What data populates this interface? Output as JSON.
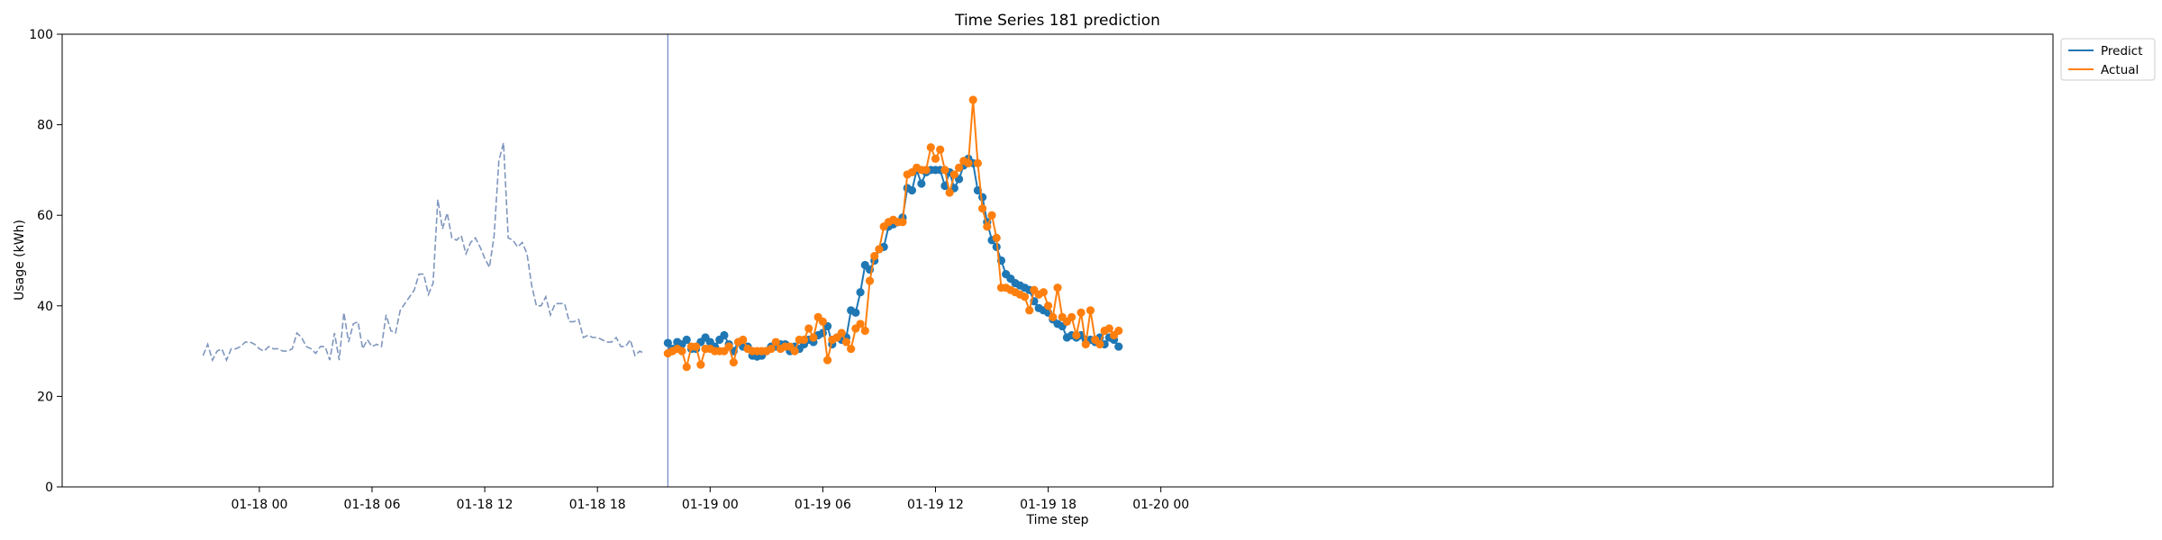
{
  "chart_data": {
    "type": "line",
    "title": "Time Series 181 prediction",
    "xlabel": "Time step",
    "ylabel": "Usage (kWh)",
    "ylim": [
      0,
      100
    ],
    "yticks": [
      0,
      20,
      40,
      60,
      80,
      100
    ],
    "xlim_hours": [
      -10.5,
      95.5
    ],
    "xticks": [
      {
        "label": "01-18 00",
        "hour": 0
      },
      {
        "label": "01-18 06",
        "hour": 6
      },
      {
        "label": "01-18 12",
        "hour": 12
      },
      {
        "label": "01-18 18",
        "hour": 18
      },
      {
        "label": "01-19 00",
        "hour": 24
      },
      {
        "label": "01-19 06",
        "hour": 30
      },
      {
        "label": "01-19 12",
        "hour": 36
      },
      {
        "label": "01-19 18",
        "hour": 42
      },
      {
        "label": "01-20 00",
        "hour": 48
      }
    ],
    "time_start": "01-17 21:00",
    "time_step_minutes": 15,
    "forecast_start": "01-18 21:45",
    "legend": {
      "position": "top-right",
      "entries": [
        "Predict",
        "Actual"
      ]
    },
    "colors": {
      "history": "#7f96bd",
      "predict": "#1f77b4",
      "actual": "#ff7f0e",
      "divider": "#6f88c4"
    },
    "history": [
      29,
      31.5,
      28,
      30,
      30.5,
      28,
      30.5,
      30.5,
      31,
      32,
      32,
      31.5,
      30.5,
      30,
      31,
      30.5,
      30.5,
      30,
      30,
      30.5,
      34,
      33,
      31,
      30.5,
      29.5,
      31,
      31,
      28,
      34,
      28,
      38.5,
      32,
      36,
      36.5,
      30.5,
      32.5,
      31,
      31.5,
      31,
      38,
      34.5,
      34,
      39,
      40.5,
      42,
      43.5,
      47,
      47,
      42.5,
      45,
      63.5,
      57,
      60.5,
      55,
      54.5,
      55.5,
      51.5,
      54,
      55,
      53,
      50.5,
      48.5,
      55.5,
      72,
      76,
      55,
      54.5,
      53,
      54,
      51.5,
      44.5,
      40,
      40,
      42,
      38,
      40.5,
      40.5,
      40.5,
      36.5,
      36.5,
      37,
      33,
      33.5,
      33,
      33,
      32.5,
      32,
      32,
      33,
      31,
      31,
      32.5,
      29,
      30,
      29.5
    ],
    "series": [
      {
        "name": "Predict",
        "values": [
          31.8,
          30.5,
          32,
          31.5,
          32.5,
          30.5,
          30.5,
          32,
          33,
          32,
          31,
          32.5,
          33.5,
          31.5,
          30,
          32,
          31,
          31,
          29,
          28.8,
          29,
          30,
          31,
          31,
          31.5,
          31.5,
          30,
          31,
          30.5,
          31.5,
          32.5,
          32,
          33.5,
          34,
          35.5,
          31.5,
          33,
          32.5,
          33,
          39,
          38.5,
          43,
          49,
          48,
          50,
          52.5,
          53,
          57.5,
          58,
          58.5,
          59.5,
          66,
          65.5,
          70,
          67,
          69.5,
          70,
          70,
          70,
          66.5,
          69.5,
          66,
          68,
          71,
          72.5,
          71.5,
          65.5,
          64,
          58.5,
          54.5,
          53,
          50,
          47,
          46,
          45,
          44.5,
          44,
          43.5,
          41,
          39.5,
          39,
          38.5,
          37,
          36,
          35.5,
          33,
          33.5,
          33,
          33.5,
          32.5,
          32.5,
          32,
          33,
          31.5,
          33,
          32.5,
          31
        ]
      },
      {
        "name": "Actual",
        "values": [
          29.5,
          30,
          30.5,
          30,
          26.5,
          31,
          31,
          27,
          30.5,
          30.5,
          30,
          30,
          30,
          31,
          27.5,
          32,
          32.5,
          30.5,
          30,
          30,
          30,
          30,
          30.5,
          32,
          30.5,
          31,
          31,
          30,
          32.5,
          32.5,
          35,
          33,
          37.5,
          36.5,
          28,
          32.5,
          33,
          34,
          32,
          30.5,
          35,
          36,
          34.5,
          45.5,
          51,
          52.5,
          57.5,
          58.5,
          59,
          58.5,
          58.5,
          69,
          69.5,
          70.5,
          70,
          70,
          75,
          72.5,
          74.5,
          70,
          65,
          69,
          70.5,
          72,
          71.5,
          85.5,
          71.5,
          61.5,
          57.5,
          60,
          55,
          44,
          44,
          43.5,
          43,
          42.5,
          42,
          39,
          43.5,
          42.5,
          43,
          40,
          37.5,
          44,
          37.5,
          36.5,
          37.5,
          33.5,
          38.5,
          31.5,
          39,
          32.5,
          31.5,
          34.5,
          35,
          33.5,
          34.5
        ]
      }
    ]
  }
}
